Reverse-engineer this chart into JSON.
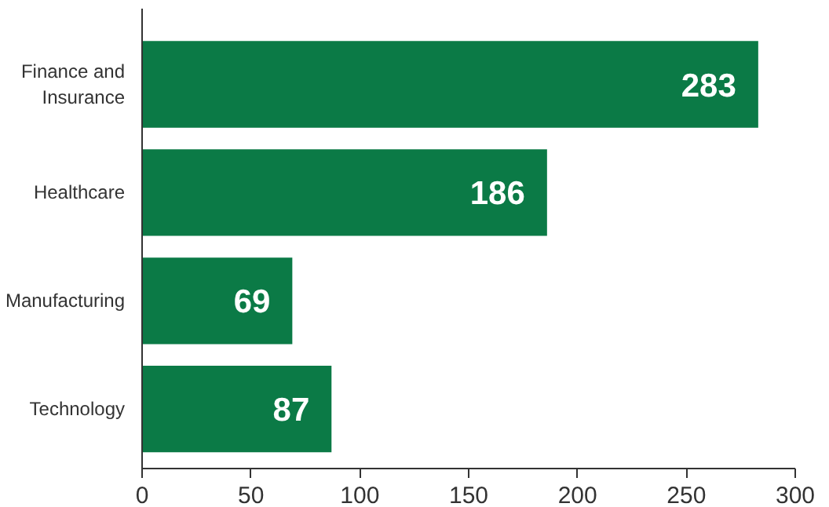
{
  "chart_data": {
    "type": "bar",
    "orientation": "horizontal",
    "categories": [
      "Finance and Insurance",
      "Healthcare",
      "Manufacturing",
      "Technology"
    ],
    "values": [
      283,
      186,
      69,
      87
    ],
    "color": "#0b7a46",
    "xlim": [
      0,
      300
    ],
    "xticks": [
      0,
      50,
      100,
      150,
      200,
      250,
      300
    ],
    "data_labels": true
  }
}
